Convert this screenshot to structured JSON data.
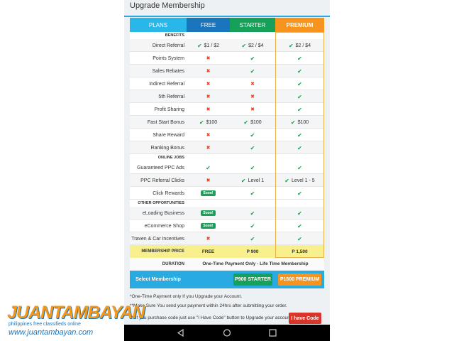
{
  "header": {
    "title": "Upgrade Membership"
  },
  "table": {
    "columns": [
      "PLANS",
      "FREE",
      "STARTER",
      "PREMIUM"
    ],
    "sections": [
      {
        "title": "BENEFITS",
        "rows": [
          {
            "label": "Direct Referral",
            "cells": [
              {
                "icon": "check",
                "text": "$1 / $2"
              },
              {
                "icon": "check",
                "text": "$2 / $4"
              },
              {
                "icon": "check",
                "text": "$2 / $4"
              }
            ]
          },
          {
            "label": "Points System",
            "cells": [
              "cross",
              "check",
              "check"
            ]
          },
          {
            "label": "Sales Rebates",
            "cells": [
              "cross",
              "check",
              "check"
            ]
          },
          {
            "label": "Indirect Referral",
            "cells": [
              "cross",
              "cross",
              "check"
            ]
          },
          {
            "label": "5th Referral",
            "cells": [
              "cross",
              "cross",
              "check"
            ]
          },
          {
            "label": "Profit Sharing",
            "cells": [
              "cross",
              "cross",
              "check"
            ]
          },
          {
            "label": "Fast Start Bonus",
            "cells": [
              {
                "icon": "check",
                "text": "$100"
              },
              {
                "icon": "check",
                "text": "$100"
              },
              {
                "icon": "check",
                "text": "$100"
              }
            ]
          },
          {
            "label": "Share Reward",
            "cells": [
              "cross",
              "check",
              "check"
            ]
          },
          {
            "label": "Ranking Bonus",
            "cells": [
              "cross",
              "check",
              "check"
            ]
          }
        ]
      },
      {
        "title": "ONLINE JOBS",
        "rows": [
          {
            "label": "Guaranteed PPC Ads",
            "cells": [
              "check",
              "check",
              "check"
            ]
          },
          {
            "label": "PPC Referral Clicks",
            "cells": [
              "cross",
              {
                "icon": "check",
                "text": "Level 1"
              },
              {
                "icon": "check",
                "text": "Level 1 - 5"
              }
            ]
          },
          {
            "label": "Click Rewards",
            "cells": [
              {
                "badge": "Soon!"
              },
              "check",
              "check"
            ]
          }
        ]
      },
      {
        "title": "OTHER OPPORTUNITIES",
        "rows": [
          {
            "label": "eLoading Business",
            "cells": [
              {
                "badge": "Soon!"
              },
              "check",
              "check"
            ]
          },
          {
            "label": "eCommerce Shop",
            "cells": [
              {
                "badge": "Soon!"
              },
              "check",
              "check"
            ]
          },
          {
            "label": "Traven & Car Incentives",
            "cells": [
              "cross",
              "check",
              "check"
            ]
          }
        ]
      }
    ],
    "price": {
      "label": "MEMBERSHIP PRICE",
      "cells": [
        "FREE",
        "P 900",
        "P 1,500"
      ]
    },
    "duration": {
      "label": "DURATION",
      "text": "One-Time Payment Only - Life Time Membership"
    },
    "select": {
      "label": "Select Membership",
      "buttons": [
        "P900 STARTER",
        "P1500 PREMIUM"
      ]
    }
  },
  "notes": [
    "*One-Time Payment only If you Upgrade your Account.",
    "**Make Sure You send your payment within 24hrs after submitting your order.",
    "***If you purchase code just use \"I Have Code\" button to Upgrade your account."
  ],
  "code_button": "I have Code",
  "watermark": {
    "brand": "JUANTAMBAYAN",
    "tagline": "philippines free classifieds online",
    "url": "www.juantambayan.com"
  }
}
